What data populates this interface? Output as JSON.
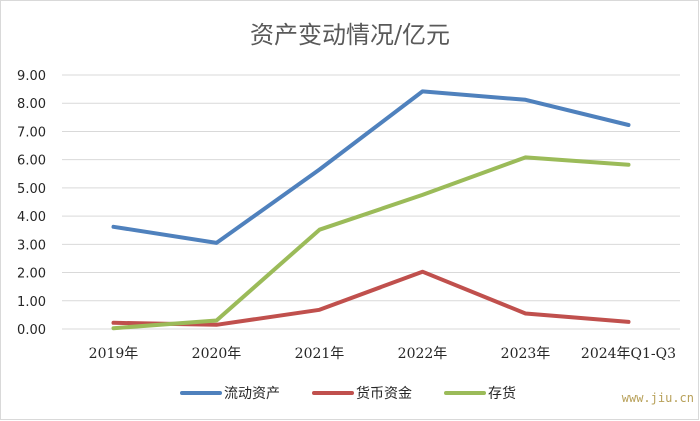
{
  "watermark": "www.jiu.cn",
  "chart_data": {
    "type": "line",
    "title": "资产变动情况/亿元",
    "xlabel": "",
    "ylabel": "",
    "categories": [
      "2019年",
      "2020年",
      "2021年",
      "2022年",
      "2023年",
      "2024年Q1-Q3"
    ],
    "yticks": [
      "0.00",
      "1.00",
      "2.00",
      "3.00",
      "4.00",
      "5.00",
      "6.00",
      "7.00",
      "8.00",
      "9.00"
    ],
    "ylim": [
      0,
      9
    ],
    "grid": true,
    "legend_position": "bottom",
    "series": [
      {
        "name": "流动资产",
        "color": "#4f81bd",
        "values": [
          3.62,
          3.05,
          5.65,
          8.42,
          8.12,
          7.23
        ]
      },
      {
        "name": "货币资金",
        "color": "#c0504d",
        "values": [
          0.22,
          0.15,
          0.68,
          2.03,
          0.55,
          0.25
        ]
      },
      {
        "name": "存货",
        "color": "#9bbb59",
        "values": [
          0.03,
          0.3,
          3.52,
          4.75,
          6.08,
          5.82
        ]
      }
    ]
  }
}
